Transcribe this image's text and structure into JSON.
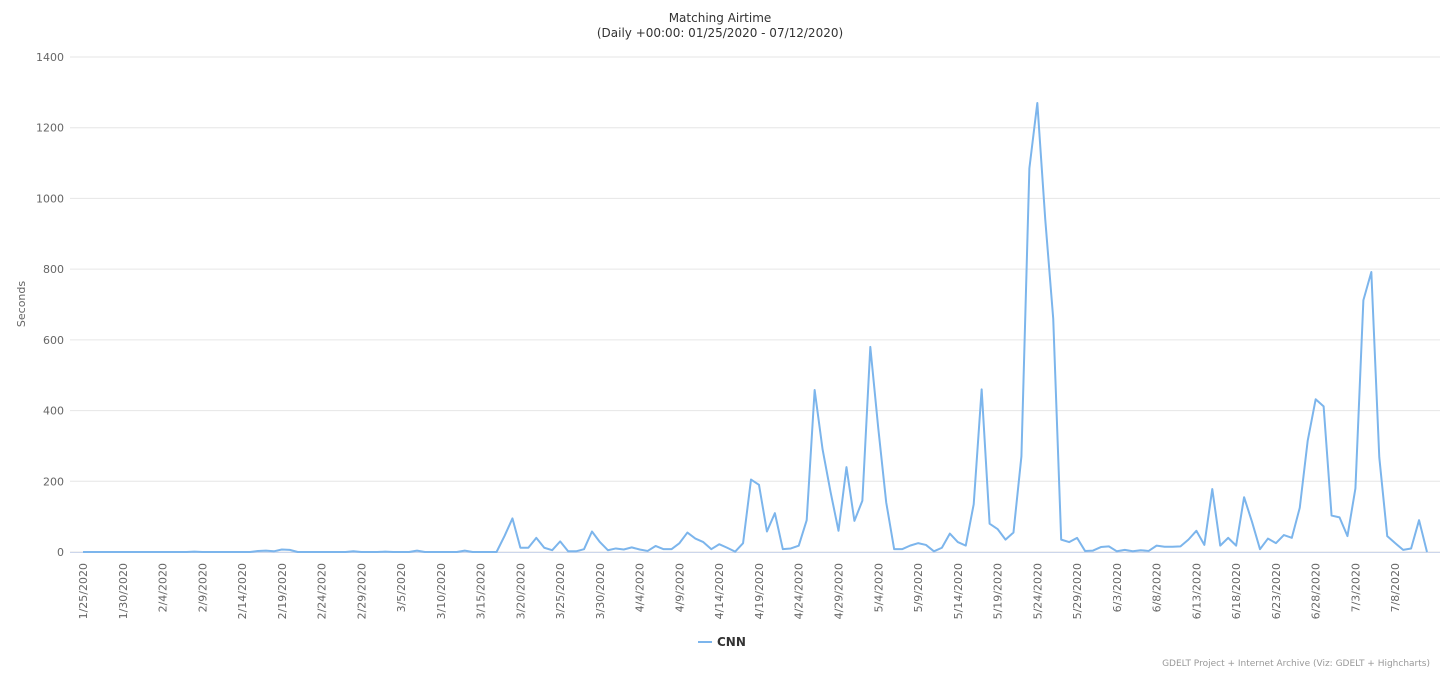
{
  "chart_data": {
    "type": "line",
    "title": "Matching Airtime",
    "subtitle": "(Daily +00:00: 01/25/2020 - 07/12/2020)",
    "y_label": "Seconds",
    "credit": "GDELT Project + Internet Archive (Viz: GDELT + Highcharts)",
    "categories": [
      "1/25/2020",
      null,
      null,
      null,
      null,
      "1/30/2020",
      null,
      null,
      null,
      null,
      "2/4/2020",
      null,
      null,
      null,
      null,
      "2/9/2020",
      null,
      null,
      null,
      null,
      "2/14/2020",
      null,
      null,
      null,
      null,
      "2/19/2020",
      null,
      null,
      null,
      null,
      "2/24/2020",
      null,
      null,
      null,
      null,
      "2/29/2020",
      null,
      null,
      null,
      null,
      "3/5/2020",
      null,
      null,
      null,
      null,
      "3/10/2020",
      null,
      null,
      null,
      null,
      "3/15/2020",
      null,
      null,
      null,
      null,
      "3/20/2020",
      null,
      null,
      null,
      null,
      "3/25/2020",
      null,
      null,
      null,
      null,
      "3/30/2020",
      null,
      null,
      null,
      null,
      "4/4/2020",
      null,
      null,
      null,
      null,
      "4/9/2020",
      null,
      null,
      null,
      null,
      "4/14/2020",
      null,
      null,
      null,
      null,
      "4/19/2020",
      null,
      null,
      null,
      null,
      "4/24/2020",
      null,
      null,
      null,
      null,
      "4/29/2020",
      null,
      null,
      null,
      null,
      "5/4/2020",
      null,
      null,
      null,
      null,
      "5/9/2020",
      null,
      null,
      null,
      null,
      "5/14/2020",
      null,
      null,
      null,
      null,
      "5/19/2020",
      null,
      null,
      null,
      null,
      "5/24/2020",
      null,
      null,
      null,
      null,
      "5/29/2020",
      null,
      null,
      null,
      null,
      "6/3/2020",
      null,
      null,
      null,
      null,
      "6/8/2020",
      null,
      null,
      null,
      null,
      "6/13/2020",
      null,
      null,
      null,
      null,
      "6/18/2020",
      null,
      null,
      null,
      null,
      "6/23/2020",
      null,
      null,
      null,
      null,
      "6/28/2020",
      null,
      null,
      null,
      null,
      "7/3/2020",
      null,
      null,
      null,
      null,
      "7/8/2020",
      null,
      null,
      null,
      null
    ],
    "series": [
      {
        "name": "CNN",
        "color": "#7cb5ec",
        "values": [
          0,
          0,
          0,
          0,
          0,
          0,
          0,
          0,
          0,
          0,
          0,
          0,
          0,
          0,
          1,
          0,
          0,
          0,
          0,
          0,
          0,
          0,
          3,
          4,
          2,
          7,
          6,
          0,
          0,
          0,
          0,
          0,
          0,
          0,
          2,
          0,
          0,
          0,
          1,
          0,
          0,
          0,
          4,
          0,
          0,
          0,
          0,
          0,
          4,
          0,
          0,
          0,
          0,
          45,
          95,
          12,
          12,
          40,
          12,
          5,
          30,
          2,
          2,
          8,
          58,
          28,
          5,
          10,
          7,
          13,
          7,
          3,
          17,
          8,
          8,
          25,
          55,
          38,
          28,
          8,
          22,
          12,
          1,
          25,
          205,
          190,
          58,
          110,
          8,
          10,
          18,
          90,
          458,
          290,
          170,
          60,
          240,
          88,
          145,
          580,
          350,
          140,
          8,
          8,
          18,
          25,
          20,
          2,
          12,
          52,
          28,
          18,
          135,
          460,
          80,
          65,
          35,
          55,
          270,
          1085,
          1270,
          940,
          660,
          35,
          28,
          40,
          3,
          4,
          14,
          16,
          2,
          6,
          2,
          5,
          3,
          18,
          15,
          15,
          16,
          35,
          60,
          20,
          178,
          18,
          40,
          18,
          155,
          85,
          8,
          38,
          25,
          48,
          40,
          125,
          315,
          432,
          412,
          103,
          98,
          45,
          180,
          712,
          792,
          268,
          45,
          25,
          6,
          10,
          90,
          0
        ]
      }
    ],
    "ylim": [
      0,
      1400
    ],
    "yticks": [
      0,
      200,
      400,
      600,
      800,
      1000,
      1200,
      1400
    ],
    "grid": true
  }
}
